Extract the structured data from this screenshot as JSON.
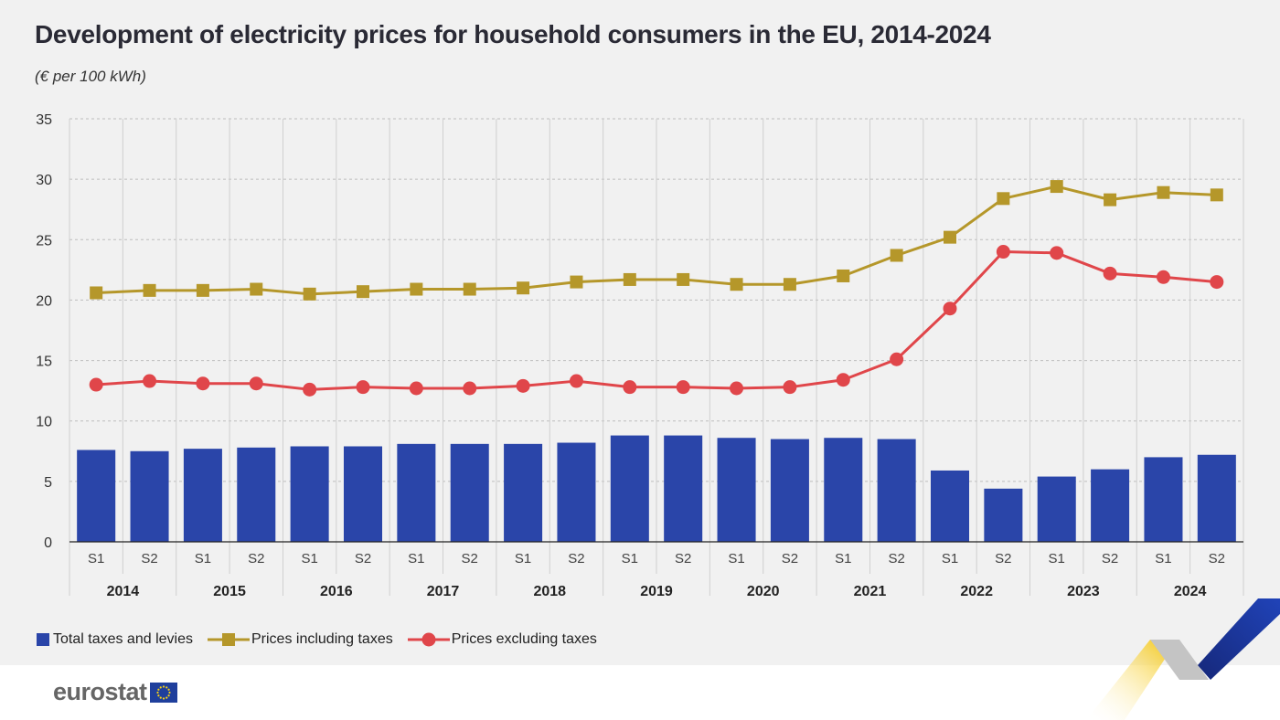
{
  "title": "Development of electricity prices for household consumers in the EU, 2014-2024",
  "subtitle": "(€ per 100 kWh)",
  "brand": "eurostat",
  "colors": {
    "bars": "#2a45a9",
    "incl": "#b5972a",
    "excl": "#e0464a",
    "grid": "#bdbdbd",
    "panel": "#f1f1f1"
  },
  "legend": [
    {
      "label": "Total taxes and levies",
      "marker": "bar-square",
      "color": "#2a45a9"
    },
    {
      "label": "Prices including taxes",
      "marker": "line-square",
      "color": "#b5972a"
    },
    {
      "label": "Prices excluding taxes",
      "marker": "line-circle",
      "color": "#e0464a"
    }
  ],
  "chart_data": {
    "type": "bar+line",
    "years": [
      "2014",
      "2015",
      "2016",
      "2017",
      "2018",
      "2019",
      "2020",
      "2021",
      "2022",
      "2023",
      "2024"
    ],
    "halves": [
      "S1",
      "S2"
    ],
    "categories": [
      "2014 S1",
      "2014 S2",
      "2015 S1",
      "2015 S2",
      "2016 S1",
      "2016 S2",
      "2017 S1",
      "2017 S2",
      "2018 S1",
      "2018 S2",
      "2019 S1",
      "2019 S2",
      "2020 S1",
      "2020 S2",
      "2021 S1",
      "2021 S2",
      "2022 S1",
      "2022 S2",
      "2023 S1",
      "2023 S2",
      "2024 S1",
      "2024 S2"
    ],
    "yticks": [
      0,
      5,
      10,
      15,
      20,
      25,
      30,
      35
    ],
    "ylim": [
      0,
      35
    ],
    "grid": true,
    "legend_position": "bottom",
    "series": [
      {
        "name": "Total taxes and levies",
        "type": "bar",
        "values": [
          7.6,
          7.5,
          7.7,
          7.8,
          7.9,
          7.9,
          8.1,
          8.1,
          8.1,
          8.2,
          8.8,
          8.8,
          8.6,
          8.5,
          8.6,
          8.5,
          5.9,
          4.4,
          5.4,
          6.0,
          7.0,
          7.2
        ]
      },
      {
        "name": "Prices including taxes",
        "type": "line",
        "marker": "square",
        "values": [
          20.6,
          20.8,
          20.8,
          20.9,
          20.5,
          20.7,
          20.9,
          20.9,
          21.0,
          21.5,
          21.7,
          21.7,
          21.3,
          21.3,
          22.0,
          23.7,
          25.2,
          28.4,
          29.4,
          28.3,
          28.9,
          28.7
        ]
      },
      {
        "name": "Prices excluding taxes",
        "type": "line",
        "marker": "circle",
        "values": [
          13.0,
          13.3,
          13.1,
          13.1,
          12.6,
          12.8,
          12.7,
          12.7,
          12.9,
          13.3,
          12.8,
          12.8,
          12.7,
          12.8,
          13.4,
          15.1,
          19.3,
          24.0,
          23.9,
          22.2,
          21.9,
          21.5
        ]
      }
    ]
  }
}
